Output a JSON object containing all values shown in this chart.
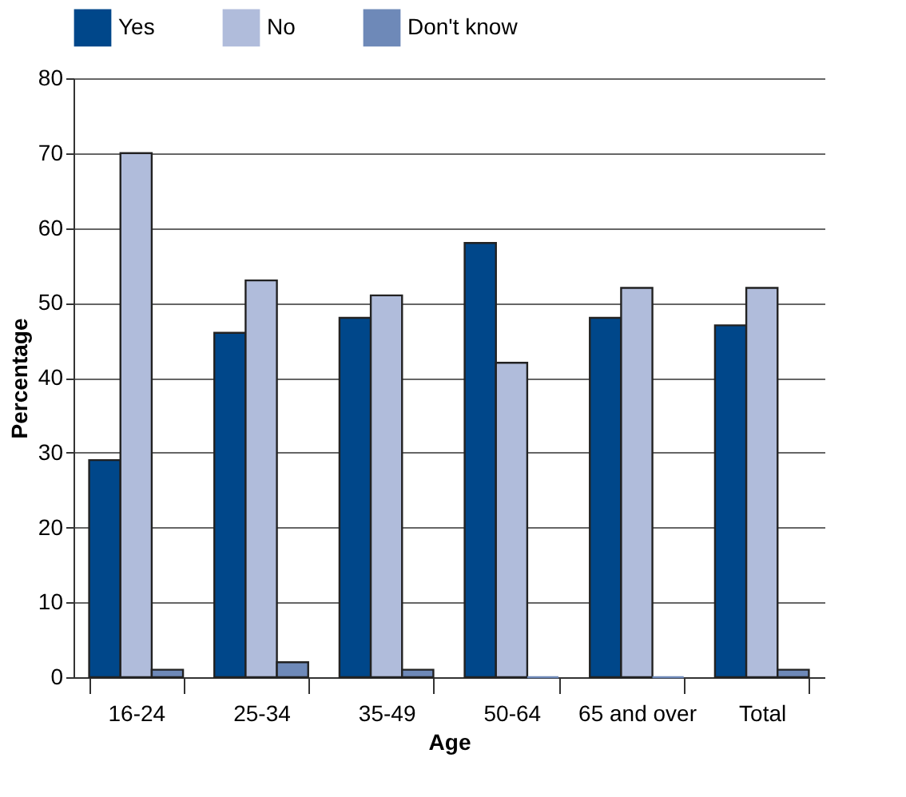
{
  "chart_data": {
    "type": "bar",
    "xlabel": "Age",
    "ylabel": "Percentage",
    "categories": [
      "16-24",
      "25-34",
      "35-49",
      "50-64",
      "65 and over",
      "Total"
    ],
    "series": [
      {
        "name": "Yes",
        "color": "#00478a",
        "values": [
          29,
          46,
          48,
          58,
          48,
          47
        ]
      },
      {
        "name": "No",
        "color": "#b0bcdb",
        "values": [
          70,
          53,
          51,
          42,
          52,
          52
        ]
      },
      {
        "name": "Don't know",
        "color": "#6e89b8",
        "values": [
          1,
          2,
          1,
          0,
          0,
          1
        ]
      }
    ],
    "ylim": [
      0,
      80
    ],
    "yticks": [
      0,
      10,
      20,
      30,
      40,
      50,
      60,
      70,
      80
    ],
    "grid": "y",
    "legend": "top"
  }
}
